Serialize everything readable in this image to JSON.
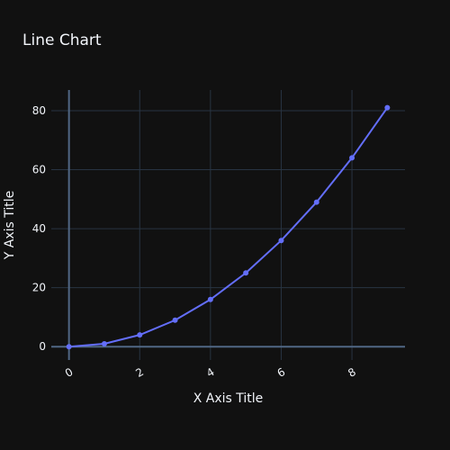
{
  "chart_data": {
    "type": "line",
    "title": "Line Chart",
    "xlabel": "X Axis Title",
    "ylabel": "Y Axis Title",
    "x": [
      0,
      1,
      2,
      3,
      4,
      5,
      6,
      7,
      8,
      9
    ],
    "series": [
      {
        "values": [
          0,
          1,
          4,
          9,
          16,
          25,
          36,
          49,
          64,
          81
        ]
      }
    ],
    "xticks": [
      0,
      2,
      4,
      6,
      8
    ],
    "yticks": [
      0,
      20,
      40,
      60,
      80
    ],
    "xlim": [
      -0.5,
      9.5
    ],
    "ylim": [
      -4.5,
      87
    ],
    "grid": true,
    "colors": {
      "background": "#111111",
      "line": "#636efa",
      "grid": "#283442",
      "zeroline": "#506784",
      "text": "#f2f5fa"
    }
  }
}
